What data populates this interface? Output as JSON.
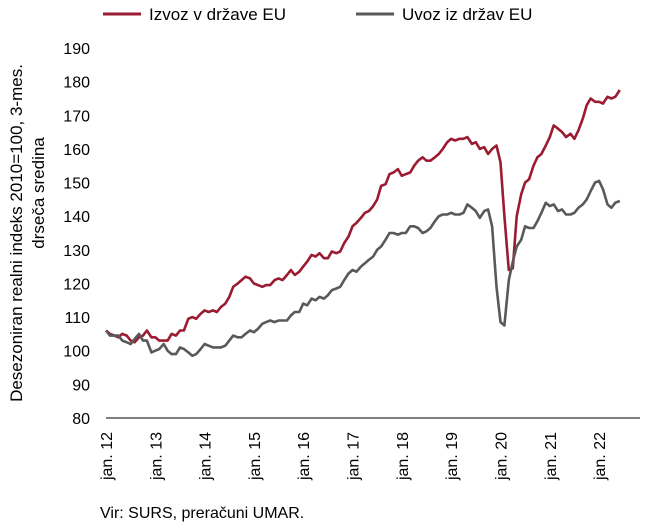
{
  "chart_data": {
    "type": "line",
    "ylabel_line1": "Desezoniran realni indeks 2010=100, 3-mes.",
    "ylabel_line2": "drseča sredina",
    "ylim": [
      80,
      190
    ],
    "yticks": [
      80,
      90,
      100,
      110,
      120,
      130,
      140,
      150,
      160,
      170,
      180,
      190
    ],
    "xlim": [
      2012.0,
      2022.83
    ],
    "xticks": [
      {
        "t": 2012,
        "label": "jan. 12"
      },
      {
        "t": 2013,
        "label": "jan. 13"
      },
      {
        "t": 2014,
        "label": "jan. 14"
      },
      {
        "t": 2015,
        "label": "jan. 15"
      },
      {
        "t": 2016,
        "label": "jan. 16"
      },
      {
        "t": 2017,
        "label": "jan. 17"
      },
      {
        "t": 2018,
        "label": "jan. 18"
      },
      {
        "t": 2019,
        "label": "jan. 19"
      },
      {
        "t": 2020,
        "label": "jan. 20"
      },
      {
        "t": 2021,
        "label": "jan. 21"
      },
      {
        "t": 2022,
        "label": "jan. 22"
      }
    ],
    "legend_position": "top",
    "grid": false,
    "series": [
      {
        "name": "Izvoz v države EU",
        "color": "#9b1b30",
        "points": [
          [
            2012.0,
            106
          ],
          [
            2012.08,
            105
          ],
          [
            2012.17,
            104.5
          ],
          [
            2012.25,
            104
          ],
          [
            2012.33,
            105
          ],
          [
            2012.42,
            104.5
          ],
          [
            2012.5,
            103
          ],
          [
            2012.58,
            102.5
          ],
          [
            2012.67,
            104
          ],
          [
            2012.75,
            104.5
          ],
          [
            2012.83,
            106
          ],
          [
            2012.92,
            104
          ],
          [
            2013.0,
            104
          ],
          [
            2013.08,
            103
          ],
          [
            2013.17,
            103
          ],
          [
            2013.25,
            103
          ],
          [
            2013.33,
            105
          ],
          [
            2013.42,
            104.5
          ],
          [
            2013.5,
            106
          ],
          [
            2013.58,
            106
          ],
          [
            2013.67,
            109.5
          ],
          [
            2013.75,
            110
          ],
          [
            2013.83,
            109.5
          ],
          [
            2013.92,
            111
          ],
          [
            2014.0,
            112
          ],
          [
            2014.08,
            111.5
          ],
          [
            2014.17,
            112
          ],
          [
            2014.25,
            111.5
          ],
          [
            2014.33,
            113
          ],
          [
            2014.42,
            114
          ],
          [
            2014.5,
            116
          ],
          [
            2014.58,
            119
          ],
          [
            2014.67,
            120
          ],
          [
            2014.75,
            121
          ],
          [
            2014.83,
            122
          ],
          [
            2014.92,
            121.5
          ],
          [
            2015.0,
            120
          ],
          [
            2015.08,
            119.5
          ],
          [
            2015.17,
            119
          ],
          [
            2015.25,
            119.5
          ],
          [
            2015.33,
            119.5
          ],
          [
            2015.42,
            121
          ],
          [
            2015.5,
            121.5
          ],
          [
            2015.58,
            121
          ],
          [
            2015.67,
            122.5
          ],
          [
            2015.75,
            124
          ],
          [
            2015.83,
            122.5
          ],
          [
            2015.92,
            123.5
          ],
          [
            2016.0,
            125
          ],
          [
            2016.08,
            126.5
          ],
          [
            2016.17,
            128.5
          ],
          [
            2016.25,
            128
          ],
          [
            2016.33,
            129
          ],
          [
            2016.42,
            127.5
          ],
          [
            2016.5,
            127.5
          ],
          [
            2016.58,
            129.5
          ],
          [
            2016.67,
            129
          ],
          [
            2016.75,
            129.5
          ],
          [
            2016.83,
            132
          ],
          [
            2016.92,
            134
          ],
          [
            2017.0,
            137
          ],
          [
            2017.08,
            138
          ],
          [
            2017.17,
            139.5
          ],
          [
            2017.25,
            141
          ],
          [
            2017.33,
            141.5
          ],
          [
            2017.42,
            143
          ],
          [
            2017.5,
            145
          ],
          [
            2017.58,
            149
          ],
          [
            2017.67,
            149.5
          ],
          [
            2017.75,
            152.5
          ],
          [
            2017.83,
            153
          ],
          [
            2017.92,
            154
          ],
          [
            2018.0,
            152
          ],
          [
            2018.08,
            152.5
          ],
          [
            2018.17,
            153
          ],
          [
            2018.25,
            155
          ],
          [
            2018.33,
            156.5
          ],
          [
            2018.42,
            157.5
          ],
          [
            2018.5,
            156.5
          ],
          [
            2018.58,
            156.5
          ],
          [
            2018.67,
            157.5
          ],
          [
            2018.75,
            158.5
          ],
          [
            2018.83,
            160
          ],
          [
            2018.92,
            162
          ],
          [
            2019.0,
            163
          ],
          [
            2019.08,
            162.5
          ],
          [
            2019.17,
            163
          ],
          [
            2019.25,
            163
          ],
          [
            2019.33,
            163.5
          ],
          [
            2019.42,
            161.5
          ],
          [
            2019.5,
            162
          ],
          [
            2019.58,
            160
          ],
          [
            2019.67,
            160.5
          ],
          [
            2019.75,
            158.5
          ],
          [
            2019.83,
            160
          ],
          [
            2019.92,
            161
          ],
          [
            2020.0,
            156
          ],
          [
            2020.08,
            140
          ],
          [
            2020.17,
            124
          ],
          [
            2020.25,
            124.5
          ],
          [
            2020.33,
            140
          ],
          [
            2020.42,
            146.5
          ],
          [
            2020.5,
            150
          ],
          [
            2020.58,
            151
          ],
          [
            2020.67,
            155
          ],
          [
            2020.75,
            157.5
          ],
          [
            2020.83,
            158.5
          ],
          [
            2020.92,
            161
          ],
          [
            2021.0,
            163.5
          ],
          [
            2021.08,
            167
          ],
          [
            2021.17,
            166
          ],
          [
            2021.25,
            165
          ],
          [
            2021.33,
            163.5
          ],
          [
            2021.42,
            164.5
          ],
          [
            2021.5,
            163
          ],
          [
            2021.58,
            165.5
          ],
          [
            2021.67,
            169
          ],
          [
            2021.75,
            173
          ],
          [
            2021.83,
            175
          ],
          [
            2021.92,
            174
          ],
          [
            2022.0,
            174
          ],
          [
            2022.08,
            173.5
          ],
          [
            2022.17,
            175.5
          ],
          [
            2022.25,
            175
          ],
          [
            2022.33,
            175.5
          ],
          [
            2022.42,
            177.5
          ]
        ]
      },
      {
        "name": "Uvoz iz držav EU",
        "color": "#595959",
        "points": [
          [
            2012.0,
            106
          ],
          [
            2012.08,
            104.5
          ],
          [
            2012.17,
            104.5
          ],
          [
            2012.25,
            104.5
          ],
          [
            2012.33,
            103
          ],
          [
            2012.42,
            102.5
          ],
          [
            2012.5,
            102
          ],
          [
            2012.58,
            103.5
          ],
          [
            2012.67,
            105
          ],
          [
            2012.75,
            103
          ],
          [
            2012.83,
            103
          ],
          [
            2012.92,
            99.5
          ],
          [
            2013.0,
            100
          ],
          [
            2013.08,
            100.5
          ],
          [
            2013.17,
            102
          ],
          [
            2013.25,
            100
          ],
          [
            2013.33,
            99
          ],
          [
            2013.42,
            99
          ],
          [
            2013.5,
            101
          ],
          [
            2013.58,
            100.5
          ],
          [
            2013.67,
            99.5
          ],
          [
            2013.75,
            98.5
          ],
          [
            2013.83,
            99
          ],
          [
            2013.92,
            100.5
          ],
          [
            2014.0,
            102
          ],
          [
            2014.08,
            101.5
          ],
          [
            2014.17,
            101
          ],
          [
            2014.25,
            101
          ],
          [
            2014.33,
            101
          ],
          [
            2014.42,
            101.5
          ],
          [
            2014.5,
            103
          ],
          [
            2014.58,
            104.5
          ],
          [
            2014.67,
            104
          ],
          [
            2014.75,
            104
          ],
          [
            2014.83,
            105
          ],
          [
            2014.92,
            106
          ],
          [
            2015.0,
            105.5
          ],
          [
            2015.08,
            106.5
          ],
          [
            2015.17,
            108
          ],
          [
            2015.25,
            108.5
          ],
          [
            2015.33,
            109
          ],
          [
            2015.42,
            108.5
          ],
          [
            2015.5,
            109
          ],
          [
            2015.58,
            109
          ],
          [
            2015.67,
            109
          ],
          [
            2015.75,
            110.5
          ],
          [
            2015.83,
            111.5
          ],
          [
            2015.92,
            111.5
          ],
          [
            2016.0,
            114
          ],
          [
            2016.08,
            113.5
          ],
          [
            2016.17,
            115.5
          ],
          [
            2016.25,
            115
          ],
          [
            2016.33,
            116
          ],
          [
            2016.42,
            115.5
          ],
          [
            2016.5,
            116.5
          ],
          [
            2016.58,
            118
          ],
          [
            2016.67,
            118.5
          ],
          [
            2016.75,
            119
          ],
          [
            2016.83,
            121
          ],
          [
            2016.92,
            123
          ],
          [
            2017.0,
            124
          ],
          [
            2017.08,
            123.5
          ],
          [
            2017.17,
            125
          ],
          [
            2017.25,
            126
          ],
          [
            2017.33,
            127
          ],
          [
            2017.42,
            128
          ],
          [
            2017.5,
            130
          ],
          [
            2017.58,
            131
          ],
          [
            2017.67,
            133
          ],
          [
            2017.75,
            135
          ],
          [
            2017.83,
            135
          ],
          [
            2017.92,
            134.5
          ],
          [
            2018.0,
            135
          ],
          [
            2018.08,
            135
          ],
          [
            2018.17,
            137
          ],
          [
            2018.25,
            137
          ],
          [
            2018.33,
            136.5
          ],
          [
            2018.42,
            135
          ],
          [
            2018.5,
            135.5
          ],
          [
            2018.58,
            136.5
          ],
          [
            2018.67,
            138.5
          ],
          [
            2018.75,
            140
          ],
          [
            2018.83,
            140.5
          ],
          [
            2018.92,
            140.5
          ],
          [
            2019.0,
            141
          ],
          [
            2019.08,
            140.5
          ],
          [
            2019.17,
            140.5
          ],
          [
            2019.25,
            141
          ],
          [
            2019.33,
            143.5
          ],
          [
            2019.42,
            142.5
          ],
          [
            2019.5,
            141.5
          ],
          [
            2019.58,
            139.5
          ],
          [
            2019.67,
            141.5
          ],
          [
            2019.75,
            142
          ],
          [
            2019.83,
            137
          ],
          [
            2019.92,
            119
          ],
          [
            2020.0,
            108.5
          ],
          [
            2020.08,
            107.5
          ],
          [
            2020.17,
            121
          ],
          [
            2020.25,
            126.5
          ],
          [
            2020.33,
            131
          ],
          [
            2020.42,
            133
          ],
          [
            2020.5,
            137
          ],
          [
            2020.58,
            136.5
          ],
          [
            2020.67,
            136.5
          ],
          [
            2020.75,
            138.5
          ],
          [
            2020.83,
            141
          ],
          [
            2020.92,
            144
          ],
          [
            2021.0,
            143
          ],
          [
            2021.08,
            143.5
          ],
          [
            2021.17,
            141.5
          ],
          [
            2021.25,
            142
          ],
          [
            2021.33,
            140.5
          ],
          [
            2021.42,
            140.5
          ],
          [
            2021.5,
            141
          ],
          [
            2021.58,
            142.5
          ],
          [
            2021.67,
            143.5
          ],
          [
            2021.75,
            145
          ],
          [
            2021.83,
            147.5
          ],
          [
            2021.92,
            150
          ],
          [
            2022.0,
            150.5
          ],
          [
            2022.08,
            148
          ],
          [
            2022.17,
            143.5
          ],
          [
            2022.25,
            142.5
          ],
          [
            2022.33,
            144
          ],
          [
            2022.42,
            144.5
          ]
        ]
      }
    ]
  },
  "source": "Vir: SURS, preračuni UMAR."
}
